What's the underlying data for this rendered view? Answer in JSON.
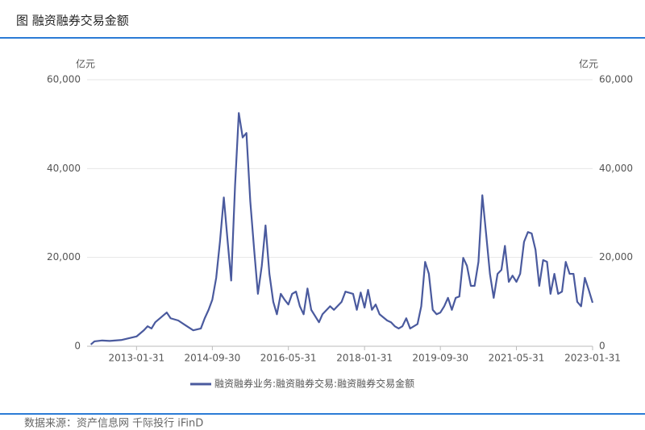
{
  "chart_data": {
    "type": "line",
    "title": "图 融资融券交易金额",
    "y_unit": "亿元",
    "y2_unit": "亿元",
    "source": "数据来源：资产信息网 千际投行 iFinD",
    "x": [
      "2012-01-31",
      "2012-02-29",
      "2012-04-30",
      "2012-06-30",
      "2012-09-30",
      "2012-11-30",
      "2013-01-31",
      "2013-03-31",
      "2013-04-30",
      "2013-05-31",
      "2013-06-30",
      "2013-09-30",
      "2013-10-31",
      "2013-12-31",
      "2014-02-28",
      "2014-04-30",
      "2014-06-30",
      "2014-07-31",
      "2014-08-31",
      "2014-09-30",
      "2014-10-31",
      "2014-11-30",
      "2014-12-31",
      "2015-01-31",
      "2015-02-28",
      "2015-03-31",
      "2015-04-30",
      "2015-05-31",
      "2015-06-30",
      "2015-07-31",
      "2015-08-31",
      "2015-09-30",
      "2015-10-31",
      "2015-11-30",
      "2015-12-31",
      "2016-01-31",
      "2016-02-29",
      "2016-03-31",
      "2016-04-30",
      "2016-05-31",
      "2016-06-30",
      "2016-07-31",
      "2016-08-31",
      "2016-09-30",
      "2016-10-31",
      "2016-11-30",
      "2017-01-31",
      "2017-02-28",
      "2017-04-30",
      "2017-05-31",
      "2017-07-31",
      "2017-08-31",
      "2017-10-31",
      "2017-11-30",
      "2017-12-31",
      "2018-01-31",
      "2018-02-28",
      "2018-03-31",
      "2018-04-30",
      "2018-05-31",
      "2018-07-31",
      "2018-08-31",
      "2018-09-30",
      "2018-10-31",
      "2018-11-30",
      "2018-12-31",
      "2019-01-31",
      "2019-03-31",
      "2019-04-30",
      "2019-05-31",
      "2019-06-30",
      "2019-07-31",
      "2019-08-31",
      "2019-09-30",
      "2019-10-31",
      "2019-11-30",
      "2019-12-31",
      "2020-01-31",
      "2020-02-29",
      "2020-03-31",
      "2020-04-30",
      "2020-05-31",
      "2020-06-30",
      "2020-07-31",
      "2020-08-31",
      "2020-09-30",
      "2020-10-31",
      "2020-11-30",
      "2020-12-31",
      "2021-01-31",
      "2021-02-28",
      "2021-03-31",
      "2021-04-30",
      "2021-05-31",
      "2021-06-30",
      "2021-07-31",
      "2021-08-31",
      "2021-09-30",
      "2021-10-31",
      "2021-11-30",
      "2021-12-31",
      "2022-01-31",
      "2022-02-28",
      "2022-03-31",
      "2022-04-30",
      "2022-05-31",
      "2022-06-30",
      "2022-07-31",
      "2022-08-31",
      "2022-09-30",
      "2022-10-31",
      "2022-11-30",
      "2022-12-31",
      "2023-01-31"
    ],
    "series": [
      {
        "name": "融资融券业务:融资融券交易:融资融券交易金额",
        "color": "#4a5a9e",
        "values": [
          400,
          1100,
          1300,
          1200,
          1400,
          1800,
          2200,
          3600,
          4500,
          4000,
          5400,
          7600,
          6300,
          5800,
          4700,
          3600,
          4000,
          6300,
          8200,
          10500,
          15400,
          23500,
          33500,
          23500,
          14800,
          36200,
          52500,
          47000,
          48000,
          32600,
          21700,
          11800,
          18100,
          27200,
          16300,
          10000,
          7200,
          11800,
          10500,
          9400,
          11800,
          12300,
          9000,
          7200,
          13000,
          8200,
          5400,
          7200,
          9000,
          8200,
          10000,
          12300,
          11800,
          8200,
          12100,
          8700,
          12700,
          8200,
          9400,
          7200,
          5800,
          5400,
          4500,
          4000,
          4500,
          6300,
          4000,
          5000,
          9000,
          19000,
          16300,
          8200,
          7200,
          7600,
          9000,
          10900,
          8200,
          10900,
          11200,
          19900,
          18100,
          13600,
          13600,
          19000,
          34000,
          25400,
          16300,
          10900,
          16300,
          17200,
          22600,
          14500,
          15900,
          14500,
          16300,
          23500,
          25700,
          25400,
          21700,
          13600,
          19400,
          19000,
          11800,
          16300,
          11800,
          12300,
          19000,
          16300,
          16300,
          10000,
          9000,
          15400,
          12700,
          9800
        ]
      }
    ],
    "xlim": [
      "2012-01-01",
      "2023-01-31"
    ],
    "xticks": [
      "2013-01-31",
      "2014-09-30",
      "2016-05-31",
      "2018-01-31",
      "2019-09-30",
      "2021-05-31",
      "2023-01-31"
    ],
    "ylim": [
      0,
      60000
    ],
    "yticks": [
      0,
      {
        "value": 20000,
        "label": "20,000"
      },
      {
        "value": 40000,
        "label": "40,000"
      },
      {
        "value": 60000,
        "label": "60,000"
      }
    ],
    "y2lim": [
      0,
      60000
    ],
    "y2ticks": [
      0,
      {
        "value": 20000,
        "label": "20,000"
      },
      {
        "value": 40000,
        "label": "40,000"
      },
      {
        "value": 60000,
        "label": "60,000"
      }
    ],
    "grid": true,
    "legend": "bottom"
  }
}
